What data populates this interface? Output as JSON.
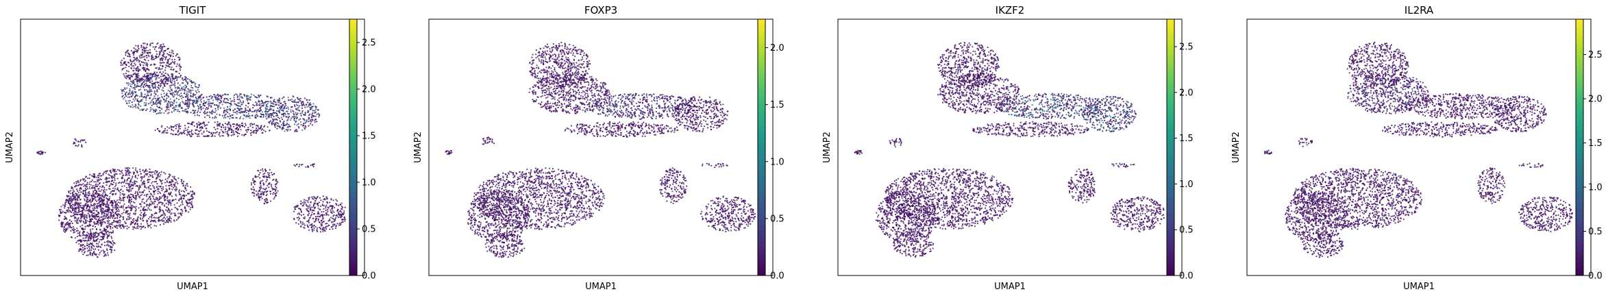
{
  "chart_data": [
    {
      "type": "scatter",
      "title": "TIGIT",
      "xlabel": "UMAP1",
      "ylabel": "UMAP2",
      "colorbar": {
        "colormap": "viridis",
        "min": 0.0,
        "max": 2.75,
        "ticks": [
          0.0,
          0.5,
          1.0,
          1.5,
          2.0,
          2.5
        ],
        "tick_labels": [
          "0.0",
          "0.5",
          "1.0",
          "1.5",
          "2.0",
          "2.5"
        ]
      },
      "highlight_regions": [
        "upper-cluster-middle",
        "upper-cluster-right",
        "upper-cluster-left-core"
      ],
      "highlight_level": 0.9
    },
    {
      "type": "scatter",
      "title": "FOXP3",
      "xlabel": "UMAP1",
      "ylabel": "UMAP2",
      "colorbar": {
        "colormap": "viridis",
        "min": 0.0,
        "max": 2.25,
        "ticks": [
          0.0,
          0.5,
          1.0,
          1.5,
          2.0
        ],
        "tick_labels": [
          "0.0",
          "0.5",
          "1.0",
          "1.5",
          "2.0"
        ]
      },
      "highlight_regions": [
        "upper-cluster-middle"
      ],
      "highlight_level": 0.5
    },
    {
      "type": "scatter",
      "title": "IKZF2",
      "xlabel": "UMAP1",
      "ylabel": "UMAP2",
      "colorbar": {
        "colormap": "viridis",
        "min": 0.0,
        "max": 2.8,
        "ticks": [
          0.0,
          0.5,
          1.0,
          1.5,
          2.0,
          2.5
        ],
        "tick_labels": [
          "0.0",
          "0.5",
          "1.0",
          "1.5",
          "2.0",
          "2.5"
        ]
      },
      "highlight_regions": [
        "upper-cluster-middle",
        "upper-cluster-right"
      ],
      "highlight_level": 1.1
    },
    {
      "type": "scatter",
      "title": "IL2RA",
      "xlabel": "UMAP1",
      "ylabel": "UMAP2",
      "colorbar": {
        "colormap": "viridis",
        "min": 0.0,
        "max": 2.9,
        "ticks": [
          0.0,
          0.5,
          1.0,
          1.5,
          2.0,
          2.5
        ],
        "tick_labels": [
          "0.0",
          "0.5",
          "1.0",
          "1.5",
          "2.0",
          "2.5"
        ]
      },
      "highlight_regions": [
        "upper-cluster-left-core"
      ],
      "highlight_level": 0.5
    }
  ],
  "colors": {
    "base_point": "#440154",
    "axis": "#000000",
    "background": "#ffffff"
  }
}
